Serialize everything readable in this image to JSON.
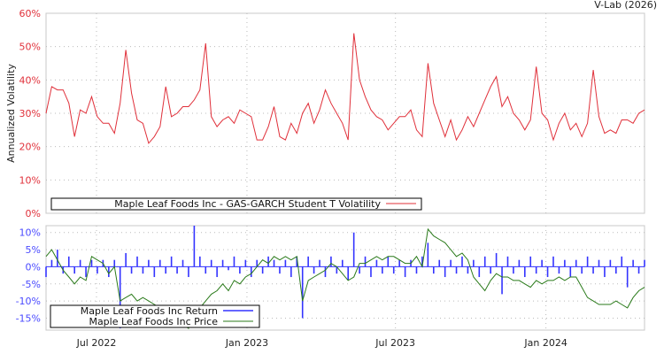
{
  "header": {
    "credit": "V-Lab (2026)"
  },
  "colors": {
    "volatility": "#e0303a",
    "returns": "#3333ff",
    "price": "#2a7a1a",
    "vol_axis": "#e0303a",
    "ret_axis": "#4a4aff"
  },
  "chart_data": [
    {
      "type": "line",
      "title": "",
      "ylabel": "Annualized Volatility",
      "ylim": [
        0,
        60
      ],
      "yticks": [
        "0%",
        "10%",
        "20%",
        "30%",
        "40%",
        "50%",
        "60%"
      ],
      "ytick_values": [
        0,
        10,
        20,
        30,
        40,
        50,
        60
      ],
      "x_unit": "week index",
      "xlim": [
        0,
        105
      ],
      "xtick_values": [
        8.85,
        35.25,
        61.3,
        87.7
      ],
      "grid": true,
      "legend": {
        "placement": "bottom-left",
        "entries": [
          "Maple Leaf Foods Inc - GAS-GARCH Student T Volatility"
        ]
      },
      "series": [
        {
          "name": "Maple Leaf Foods Inc - GAS-GARCH Student T Volatility",
          "values": [
            30,
            38,
            37,
            37,
            33,
            23,
            31,
            30,
            35,
            29,
            27,
            27,
            24,
            33,
            49,
            36,
            28,
            27,
            21,
            23,
            26,
            38,
            29,
            30,
            32,
            32,
            34,
            37,
            51,
            29,
            26,
            28,
            29,
            27,
            31,
            30,
            29,
            22,
            22,
            26,
            32,
            23,
            22,
            27,
            24,
            30,
            33,
            27,
            31,
            37,
            33,
            30,
            27,
            22,
            54,
            40,
            35,
            31,
            29,
            28,
            25,
            27,
            29,
            29,
            31,
            25,
            23,
            45,
            33,
            28,
            23,
            28,
            22,
            25,
            29,
            26,
            30,
            34,
            38,
            41,
            32,
            35,
            30,
            28,
            25,
            28,
            44,
            30,
            28,
            22,
            27,
            30,
            25,
            27,
            23,
            27,
            43,
            29,
            24,
            25,
            24,
            28,
            28,
            27,
            30,
            31
          ]
        }
      ]
    },
    {
      "type": "line",
      "ylim": [
        -18.5,
        12
      ],
      "yticks": [
        "10%",
        "5%",
        "0%",
        "-5%",
        "-10%",
        "-15%"
      ],
      "ytick_values": [
        10,
        5,
        0,
        -5,
        -10,
        -15
      ],
      "xlim": [
        0,
        105
      ],
      "xticks": [
        "Jul 2022",
        "Jan 2023",
        "Jul 2023",
        "Jan 2024"
      ],
      "xtick_values": [
        8.85,
        35.25,
        61.3,
        87.7
      ],
      "grid": true,
      "legend": {
        "placement": "bottom-left",
        "entries": [
          "Maple Leaf Foods Inc Return",
          "Maple Leaf Foods Inc Price"
        ]
      },
      "series": [
        {
          "name": "Maple Leaf Foods Inc Return",
          "style": "bars",
          "values": [
            -3,
            2,
            5,
            -2,
            3,
            -2,
            2,
            -3,
            2,
            -2,
            2,
            -3,
            2,
            -18,
            4,
            -2,
            3,
            -2,
            2,
            -3,
            2,
            -2,
            3,
            -2,
            2,
            -3,
            12,
            3,
            -2,
            2,
            -3,
            2,
            -1,
            3,
            -2,
            2,
            -3,
            2,
            -2,
            3,
            2,
            -2,
            2,
            -3,
            3,
            -15,
            3,
            -2,
            2,
            -3,
            3,
            -2,
            2,
            -4,
            10,
            -2,
            3,
            -3,
            2,
            -2,
            3,
            -2,
            2,
            -3,
            2,
            -2,
            3,
            7,
            -2,
            2,
            -3,
            2,
            -2,
            3,
            -2,
            2,
            -3,
            3,
            -2,
            4,
            -8,
            3,
            -2,
            2,
            -3,
            3,
            -2,
            2,
            -3,
            3,
            -2,
            2,
            -3,
            2,
            -2,
            3,
            -2,
            2,
            -3,
            2,
            -2,
            3,
            -6,
            2,
            -2,
            2
          ]
        },
        {
          "name": "Maple Leaf Foods Inc Price",
          "style": "line",
          "values": [
            3,
            5,
            2,
            -1,
            -3,
            -5,
            -3,
            -4,
            3,
            2,
            1,
            -2,
            0,
            -10,
            -9,
            -8,
            -10,
            -9,
            -10,
            -11,
            -12,
            -14,
            -15,
            -16,
            -17,
            -18,
            -15,
            -12,
            -10,
            -8,
            -7,
            -5,
            -7,
            -4,
            -5,
            -3,
            -2,
            0,
            2,
            1,
            3,
            2,
            3,
            2,
            3,
            -10,
            -4,
            -3,
            -2,
            -1,
            1,
            0,
            -2,
            -4,
            -3,
            1,
            1,
            2,
            3,
            2,
            3,
            3,
            2,
            1,
            1,
            3,
            0,
            11,
            9,
            8,
            7,
            5,
            3,
            4,
            2,
            -3,
            -5,
            -7,
            -4,
            -2,
            -3,
            -3,
            -4,
            -4,
            -5,
            -6,
            -4,
            -5,
            -4,
            -4,
            -3,
            -4,
            -3,
            -3,
            -6,
            -9,
            -10,
            -11,
            -11,
            -11,
            -10,
            -11,
            -12,
            -9,
            -7,
            -6
          ]
        }
      ]
    }
  ]
}
